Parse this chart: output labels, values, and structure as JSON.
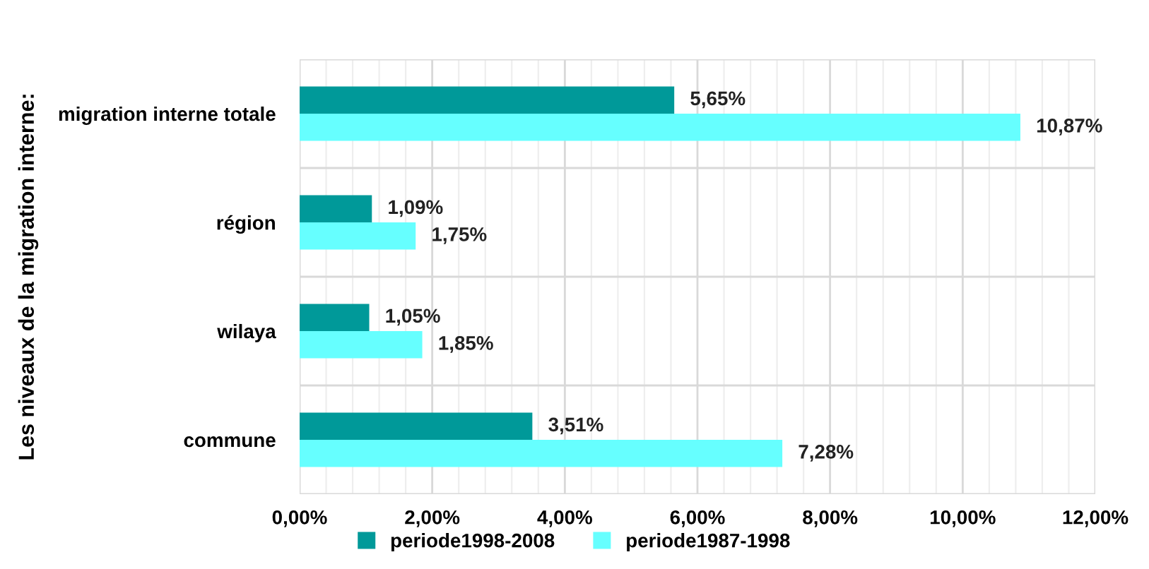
{
  "chart_data": {
    "type": "bar",
    "orientation": "horizontal",
    "ylabel": "Les niveaux de la migration interne:",
    "categories": [
      "migration interne totale",
      "région",
      "wilaya",
      "commune"
    ],
    "series": [
      {
        "name": "periode1998-2008",
        "color": "#009999",
        "values": [
          5.65,
          1.09,
          1.05,
          3.51
        ],
        "value_labels": [
          "5,65%",
          "1,09%",
          "1,05%",
          "3,51%"
        ]
      },
      {
        "name": "periode1987-1998",
        "color": "#66ffff",
        "values": [
          10.87,
          1.75,
          1.85,
          7.28
        ],
        "value_labels": [
          "10,87%",
          "1,75%",
          "1,85%",
          "7,28%"
        ]
      }
    ],
    "xlim": [
      0,
      12
    ],
    "xticks": [
      {
        "value": 0,
        "label": "0,00%"
      },
      {
        "value": 2,
        "label": "2,00%"
      },
      {
        "value": 4,
        "label": "4,00%"
      },
      {
        "value": 6,
        "label": "6,00%"
      },
      {
        "value": 8,
        "label": "8,00%"
      },
      {
        "value": 10,
        "label": "10,00%"
      },
      {
        "value": 12,
        "label": "12,00%"
      }
    ],
    "grid": true,
    "legend": "bottom"
  }
}
